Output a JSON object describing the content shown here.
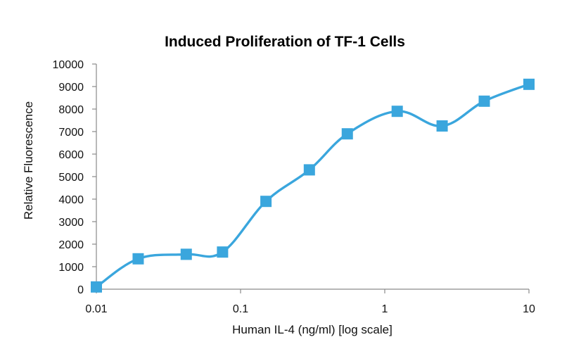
{
  "chart_data": {
    "type": "line",
    "title": "Induced Proliferation of TF-1 Cells",
    "xlabel": "Human IL-4 (ng/ml) [log scale]",
    "ylabel": "Relative Fluorescence",
    "x_scale": "log",
    "xlim": [
      0.01,
      10
    ],
    "ylim": [
      0,
      10000
    ],
    "x_ticks": [
      0.01,
      0.1,
      1,
      10
    ],
    "x_tick_labels": [
      "0.01",
      "0.1",
      "1",
      "10"
    ],
    "y_ticks": [
      0,
      1000,
      2000,
      3000,
      4000,
      5000,
      6000,
      7000,
      8000,
      9000,
      10000
    ],
    "y_tick_labels": [
      "0",
      "1000",
      "2000",
      "3000",
      "4000",
      "5000",
      "6000",
      "7000",
      "8000",
      "9000",
      "10000"
    ],
    "grid": false,
    "legend": "none",
    "marker": "square",
    "line_smooth": true,
    "color": "#3aa6dd",
    "series": [
      {
        "x": [
          0.01,
          0.0195,
          0.042,
          0.075,
          0.15,
          0.3,
          0.55,
          1.22,
          2.5,
          4.9,
          10
        ],
        "values": [
          100,
          1350,
          1550,
          1650,
          3900,
          5300,
          6900,
          7900,
          7250,
          8350,
          9100
        ]
      }
    ]
  }
}
